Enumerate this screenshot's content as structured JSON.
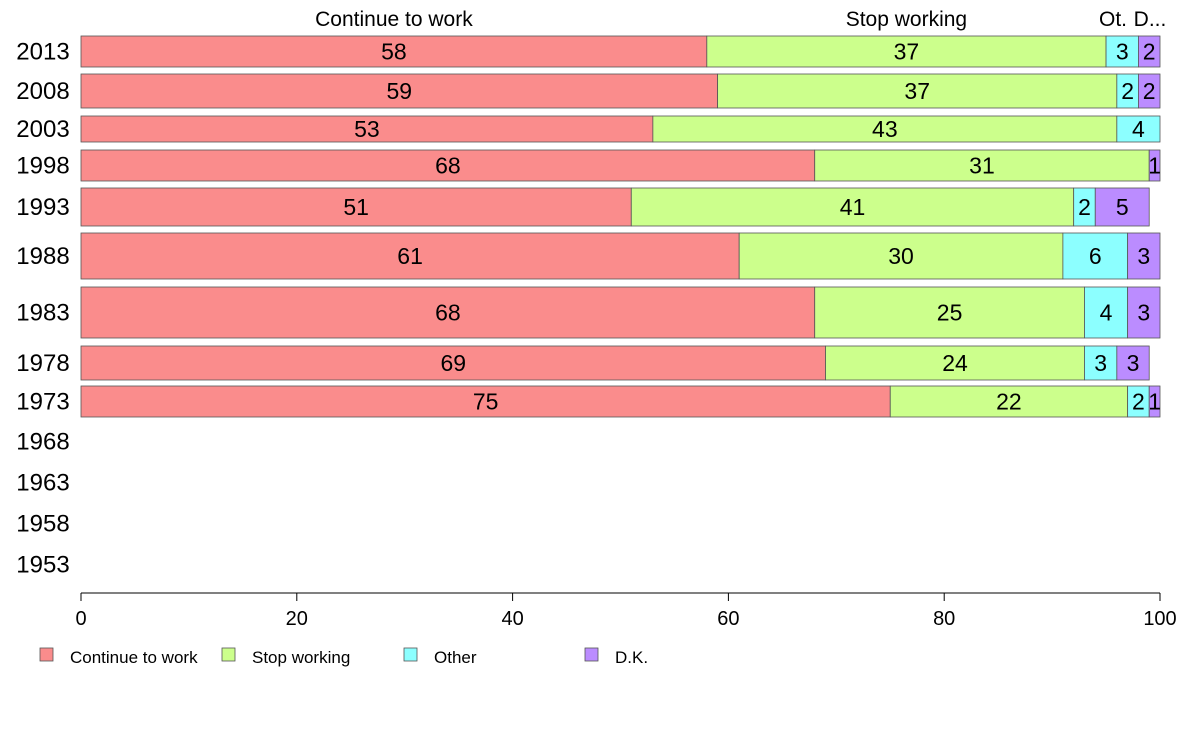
{
  "chart_data": {
    "type": "bar",
    "orientation": "horizontal",
    "stacked": true,
    "title": "",
    "xlabel": "",
    "ylabel": "",
    "xlim": [
      0,
      100
    ],
    "x_ticks": [
      0,
      20,
      40,
      60,
      80,
      100
    ],
    "grid": false,
    "legend_position": "bottom-left",
    "categories": [
      "2013",
      "2008",
      "2003",
      "1998",
      "1993",
      "1988",
      "1983",
      "1978",
      "1973",
      "1968",
      "1963",
      "1958",
      "1953"
    ],
    "column_headers": [
      "Continue to work",
      "Stop working",
      "Ot.",
      "D..."
    ],
    "series": [
      {
        "name": "Continue to work",
        "color": "#fa8c8c",
        "values": [
          58,
          59,
          53,
          68,
          51,
          61,
          68,
          69,
          75,
          null,
          null,
          null,
          null
        ]
      },
      {
        "name": "Stop working",
        "color": "#ccff8c",
        "values": [
          37,
          37,
          43,
          31,
          41,
          30,
          25,
          24,
          22,
          null,
          null,
          null,
          null
        ]
      },
      {
        "name": "Other",
        "color": "#8cffff",
        "values": [
          3,
          2,
          4,
          0,
          2,
          6,
          4,
          3,
          2,
          null,
          null,
          null,
          null
        ]
      },
      {
        "name": "D.K.",
        "color": "#bb8cff",
        "values": [
          2,
          2,
          0,
          1,
          5,
          3,
          3,
          3,
          1,
          null,
          null,
          null,
          null
        ]
      }
    ]
  }
}
